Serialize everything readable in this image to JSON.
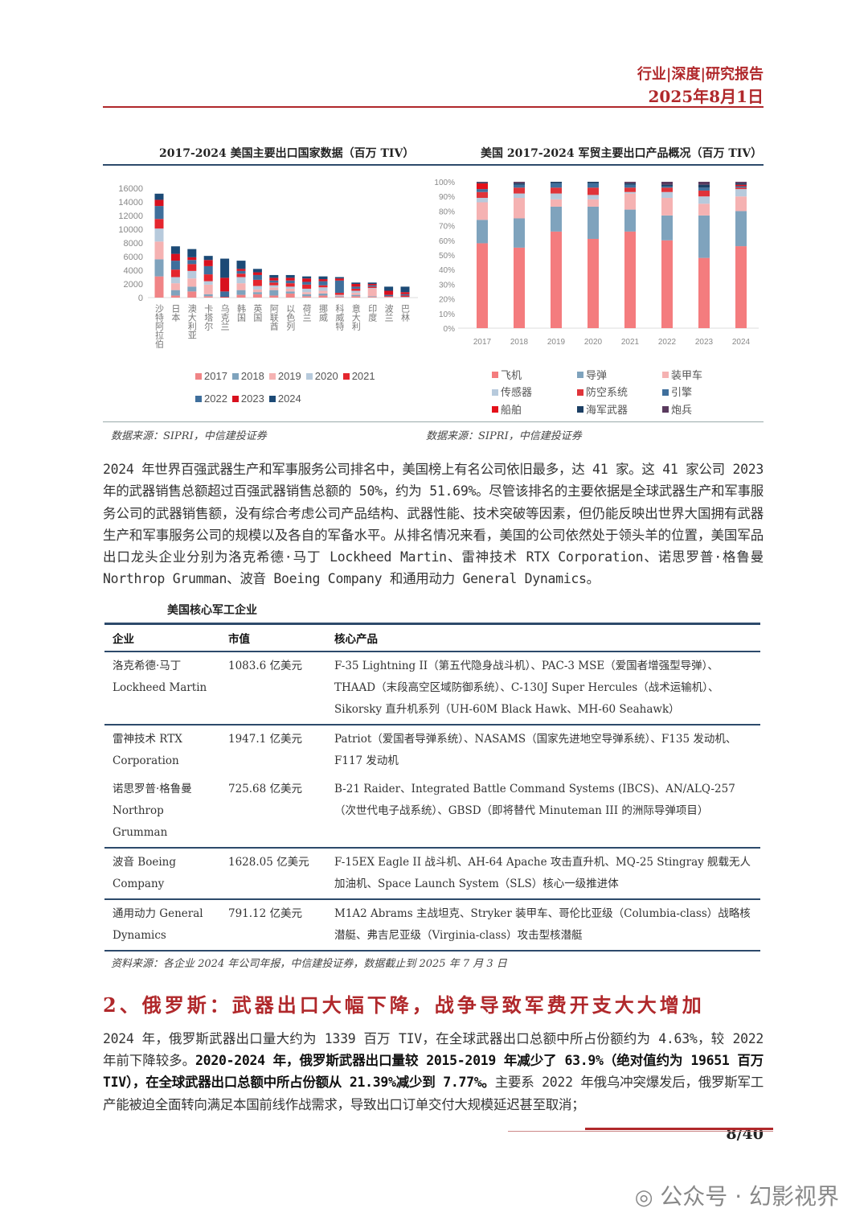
{
  "header": {
    "category": "行业|深度|研究报告",
    "date": "2025年8月1日"
  },
  "charts": {
    "left_title": "2017-2024 美国主要出口国家数据（百万 TIV）",
    "right_title": "美国 2017-2024 军贸主要出口产品概况（百万 TIV）",
    "left_source": "数据来源：SIPRI，中信建投证券",
    "right_source": "数据来源：SIPRI，中信建投证券"
  },
  "chart_data": [
    {
      "type": "bar",
      "stacked": true,
      "title": "2017-2024 美国主要出口国家数据（百万 TIV）",
      "ylim": [
        0,
        16000
      ],
      "yticks": [
        0,
        2000,
        4000,
        6000,
        8000,
        10000,
        12000,
        14000,
        16000
      ],
      "legend_position": "bottom",
      "categories": [
        "沙特阿拉伯",
        "日本",
        "澳大利亚",
        "卡塔尔",
        "乌克兰",
        "韩国",
        "英国",
        "阿联酋",
        "以色列",
        "荷兰",
        "挪威",
        "科威特",
        "意大利",
        "印度",
        "波兰",
        "巴林"
      ],
      "series": [
        {
          "name": "2017",
          "color": "#f08486",
          "values": [
            3100,
            300,
            900,
            200,
            0,
            400,
            500,
            300,
            600,
            200,
            300,
            100,
            200,
            100,
            0,
            0
          ]
        },
        {
          "name": "2018",
          "color": "#7fa3bd",
          "values": [
            2500,
            800,
            700,
            300,
            0,
            700,
            300,
            800,
            300,
            300,
            300,
            100,
            200,
            100,
            0,
            0
          ]
        },
        {
          "name": "2019",
          "color": "#f5b2b2",
          "values": [
            2600,
            1000,
            1200,
            1400,
            0,
            1000,
            400,
            400,
            400,
            300,
            400,
            100,
            300,
            1100,
            100,
            0
          ]
        },
        {
          "name": "2020",
          "color": "#b7cadc",
          "values": [
            1900,
            900,
            1100,
            500,
            0,
            900,
            500,
            300,
            300,
            500,
            500,
            100,
            300,
            100,
            0,
            100
          ]
        },
        {
          "name": "2021",
          "color": "#e4262e",
          "values": [
            1400,
            1100,
            1000,
            1000,
            100,
            500,
            900,
            400,
            500,
            600,
            300,
            300,
            300,
            200,
            100,
            200
          ]
        },
        {
          "name": "2022",
          "color": "#3f6f9c",
          "values": [
            1900,
            1300,
            600,
            1200,
            800,
            400,
            700,
            300,
            400,
            400,
            600,
            1800,
            300,
            200,
            200,
            200
          ]
        },
        {
          "name": "2023",
          "color": "#d8101e",
          "values": [
            900,
            1000,
            400,
            900,
            2000,
            300,
            400,
            400,
            400,
            500,
            300,
            300,
            400,
            200,
            600,
            300
          ]
        },
        {
          "name": "2024",
          "color": "#1c4a76",
          "values": [
            900,
            1100,
            1200,
            600,
            2800,
            1200,
            500,
            400,
            400,
            300,
            400,
            200,
            200,
            200,
            600,
            800
          ]
        }
      ]
    },
    {
      "type": "bar",
      "stacked": true,
      "percent": true,
      "title": "美国 2017-2024 军贸主要出口产品概况（百万 TIV）",
      "ylim": [
        0,
        100
      ],
      "yticks": [
        "0%",
        "10%",
        "20%",
        "30%",
        "40%",
        "50%",
        "60%",
        "70%",
        "80%",
        "90%",
        "100%"
      ],
      "legend_position": "bottom",
      "categories": [
        "2017",
        "2018",
        "2019",
        "2020",
        "2021",
        "2022",
        "2023",
        "2024"
      ],
      "series": [
        {
          "name": "飞机",
          "color": "#f47c7e",
          "values": [
            58,
            55,
            66,
            61,
            66,
            60,
            48,
            56
          ]
        },
        {
          "name": "导弹",
          "color": "#7fa3bd",
          "values": [
            16,
            20,
            17,
            22,
            15,
            17,
            29,
            24
          ]
        },
        {
          "name": "装甲车",
          "color": "#f5b2b2",
          "values": [
            12,
            14,
            5,
            5,
            11,
            12,
            8,
            10
          ]
        },
        {
          "name": "传感器",
          "color": "#b7cadc",
          "values": [
            3,
            3,
            4,
            3,
            1,
            4,
            5,
            5
          ]
        },
        {
          "name": "防空系统",
          "color": "#e0343a",
          "values": [
            4,
            4,
            4,
            5,
            3,
            3,
            4,
            1
          ]
        },
        {
          "name": "引擎",
          "color": "#3f6f9c",
          "values": [
            2,
            2,
            3,
            3,
            2,
            1,
            2,
            1
          ]
        },
        {
          "name": "船舶",
          "color": "#e4101a",
          "values": [
            4,
            0,
            0,
            0,
            0,
            0,
            0,
            1
          ]
        },
        {
          "name": "海军武器",
          "color": "#1c3f64",
          "values": [
            0.5,
            1,
            1,
            1,
            1,
            1,
            2,
            1
          ]
        },
        {
          "name": "炮兵",
          "color": "#5a3a5e",
          "values": [
            0.5,
            1,
            0,
            0,
            1,
            2,
            2,
            1
          ]
        }
      ]
    }
  ],
  "para1": "2024 年世界百强武器生产和军事服务公司排名中，美国榜上有名公司依旧最多，达 41 家。这 41 家公司 2023 年的武器销售总额超过百强武器销售总额的 50%，约为 51.69%。尽管该排名的主要依据是全球武器生产和军事服务公司的武器销售额，没有综合考虑公司产品结构、武器性能、技术突破等因素，但仍能反映出世界大国拥有武器生产和军事服务公司的规模以及各自的军备水平。从排名情况来看，美国的公司依然处于领头羊的位置，美国军品出口龙头企业分别为洛克希德·马丁 Lockheed Martin、雷神技术 RTX Corporation、诺思罗普·格鲁曼 Northrop Grumman、波音 Boeing Company 和通用动力 General Dynamics。",
  "table": {
    "title": "美国核心军工企业",
    "headers": [
      "企业",
      "市值",
      "核心产品"
    ],
    "rows": [
      {
        "company": "洛克希德·马丁 Lockheed Martin",
        "value": "1083.6 亿美元",
        "products": "F-35 Lightning II（第五代隐身战斗机）、PAC-3 MSE（爱国者增强型导弹）、THAAD（末段高空区域防御系统）、C-130J Super Hercules（战术运输机）、Sikorsky 直升机系列（UH-60M Black Hawk、MH-60 Seahawk）"
      },
      {
        "company": "雷神技术 RTX Corporation",
        "value": "1947.1 亿美元",
        "products": "Patriot（爱国者导弹系统）、NASAMS（国家先进地空导弹系统）、F135 发动机、F117 发动机"
      },
      {
        "company": "诺思罗普·格鲁曼 Northrop Grumman",
        "value": "725.68 亿美元",
        "products": "B-21 Raider、Integrated Battle Command Systems (IBCS)、AN/ALQ-257（次世代电子战系统）、GBSD（即将替代 Minuteman III 的洲际导弹项目）"
      },
      {
        "company": "波音 Boeing Company",
        "value": "1628.05 亿美元",
        "products": "F-15EX Eagle II 战斗机、AH-64 Apache 攻击直升机、MQ-25 Stingray 舰载无人加油机、Space Launch System（SLS）核心一级推进体"
      },
      {
        "company": "通用动力 General Dynamics",
        "value": "791.12 亿美元",
        "products": "M1A2 Abrams 主战坦克、Stryker 装甲车、哥伦比亚级（Columbia-class）战略核潜艇、弗吉尼亚级（Virginia-class）攻击型核潜艇"
      }
    ],
    "source": "资料来源：各企业 2024 年公司年报，中信建投证券，数据截止到 2025 年 7 月 3 日"
  },
  "section": {
    "title": "2、俄罗斯：武器出口大幅下降，战争导致军费开支大大增加"
  },
  "para2": [
    {
      "text": "2024 年，俄罗斯武器出口量大约为 1339 百万 TIV，在全球武器出口总额中所占份额约为 4.63%，较 2022 年前下降较多。",
      "bold": false
    },
    {
      "text": "2020-2024 年，俄罗斯武器出口量较 2015-2019 年减少了 63.9%（绝对值约为 19651 百万 TIV），在全球武器出口总额中所占份额从 21.39%减少到 7.77%。",
      "bold": true
    },
    {
      "text": "主要系 2022 年俄乌冲突爆发后，俄罗斯军工产能被迫全面转向满足本国前线作战需求，导致出口订单交付大规模延迟甚至取消；",
      "bold": false
    }
  ],
  "footer": {
    "page": "8/40",
    "watermark": "公众号 · 幻影视界"
  }
}
